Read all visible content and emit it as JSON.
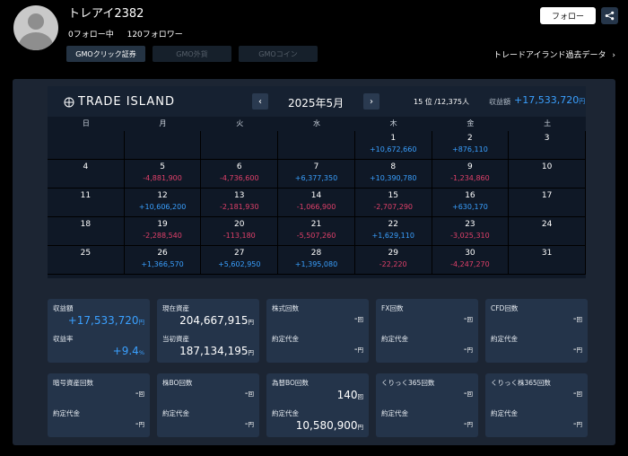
{
  "user": {
    "name": "トレアイ2382",
    "following": "0フォロー中",
    "followers": "120フォロワー"
  },
  "tabs": [
    {
      "label": "GMOクリック証券",
      "active": true
    },
    {
      "label": "GMO外貨",
      "active": false
    },
    {
      "label": "GMOコイン",
      "active": false
    }
  ],
  "follow_button": "フォロー",
  "past_data_link": "トレードアイランド過去データ",
  "calendar": {
    "logo": "TRADE ISLAND",
    "month": "2025年5月",
    "rank": "15 位 /12,375人",
    "profit_label": "収益額",
    "profit_value": "+17,533,720",
    "profit_unit": "円",
    "weekdays": [
      "日",
      "月",
      "火",
      "水",
      "木",
      "金",
      "土"
    ],
    "weeks": [
      [
        {
          "d": "",
          "v": ""
        },
        {
          "d": "",
          "v": ""
        },
        {
          "d": "",
          "v": ""
        },
        {
          "d": "",
          "v": ""
        },
        {
          "d": "1",
          "v": "+10,672,660"
        },
        {
          "d": "2",
          "v": "+876,110"
        },
        {
          "d": "3",
          "v": ""
        }
      ],
      [
        {
          "d": "4",
          "v": ""
        },
        {
          "d": "5",
          "v": "-4,881,900"
        },
        {
          "d": "6",
          "v": "-4,736,600"
        },
        {
          "d": "7",
          "v": "+6,377,350"
        },
        {
          "d": "8",
          "v": "+10,390,780"
        },
        {
          "d": "9",
          "v": "-1,234,860"
        },
        {
          "d": "10",
          "v": ""
        }
      ],
      [
        {
          "d": "11",
          "v": ""
        },
        {
          "d": "12",
          "v": "+10,606,200"
        },
        {
          "d": "13",
          "v": "-2,181,930"
        },
        {
          "d": "14",
          "v": "-1,066,900"
        },
        {
          "d": "15",
          "v": "-2,707,290"
        },
        {
          "d": "16",
          "v": "+630,170"
        },
        {
          "d": "17",
          "v": ""
        }
      ],
      [
        {
          "d": "18",
          "v": ""
        },
        {
          "d": "19",
          "v": "-2,288,540"
        },
        {
          "d": "20",
          "v": "-113,180"
        },
        {
          "d": "21",
          "v": "-5,507,260"
        },
        {
          "d": "22",
          "v": "+1,629,110"
        },
        {
          "d": "23",
          "v": "-3,025,310"
        },
        {
          "d": "24",
          "v": ""
        }
      ],
      [
        {
          "d": "25",
          "v": ""
        },
        {
          "d": "26",
          "v": "+1,366,570"
        },
        {
          "d": "27",
          "v": "+5,602,950"
        },
        {
          "d": "28",
          "v": "+1,395,080"
        },
        {
          "d": "29",
          "v": "-22,220"
        },
        {
          "d": "30",
          "v": "-4,247,270"
        },
        {
          "d": "31",
          "v": ""
        }
      ]
    ]
  },
  "stats": {
    "profit": {
      "label": "収益額",
      "value": "+17,533,720",
      "unit": "円",
      "rate_label": "収益率",
      "rate_value": "+9.4",
      "rate_unit": "%"
    },
    "assets": {
      "current_label": "現在資産",
      "current_value": "204,667,915",
      "unit": "円",
      "initial_label": "当初資産",
      "initial_value": "187,134,195"
    },
    "stock": {
      "label": "株式回数",
      "count": "-",
      "count_unit": "回",
      "amount_label": "約定代金",
      "amount": "-",
      "amount_unit": "円"
    },
    "fx": {
      "label": "FX回数",
      "count": "-",
      "count_unit": "回",
      "amount_label": "約定代金",
      "amount": "-",
      "amount_unit": "円"
    },
    "cfd": {
      "label": "CFD回数",
      "count": "-",
      "count_unit": "回",
      "amount_label": "約定代金",
      "amount": "-",
      "amount_unit": "円"
    },
    "crypto": {
      "label": "暗号資産回数",
      "count": "-",
      "count_unit": "回",
      "amount_label": "約定代金",
      "amount": "-",
      "amount_unit": "円"
    },
    "stock_bo": {
      "label": "株BO回数",
      "count": "-",
      "count_unit": "回",
      "amount_label": "約定代金",
      "amount": "-",
      "amount_unit": "円"
    },
    "fx_bo": {
      "label": "為替BO回数",
      "count": "140",
      "count_unit": "回",
      "amount_label": "約定代金",
      "amount": "10,580,900",
      "amount_unit": "円"
    },
    "click365": {
      "label": "くりっく365回数",
      "count": "-",
      "count_unit": "回",
      "amount_label": "約定代金",
      "amount": "-",
      "amount_unit": "円"
    },
    "click_kabu365": {
      "label": "くりっく株365回数",
      "count": "-",
      "count_unit": "回",
      "amount_label": "約定代金",
      "amount": "-",
      "amount_unit": "円"
    }
  }
}
